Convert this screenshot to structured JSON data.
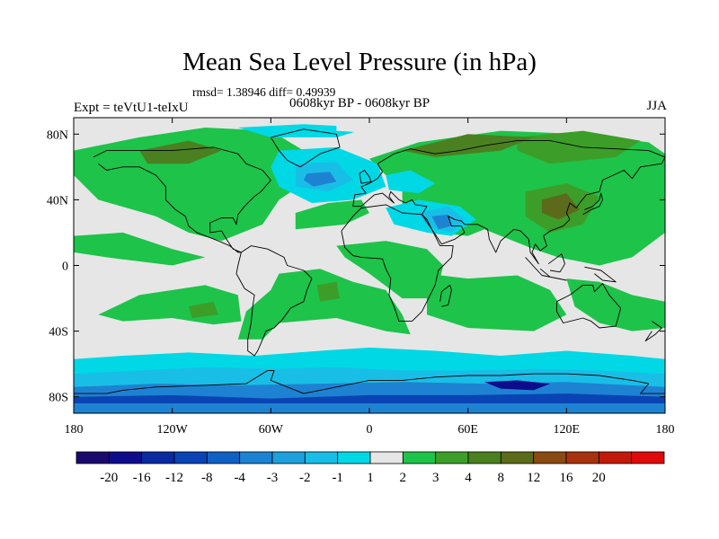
{
  "title": "Mean Sea Level Pressure (in hPa)",
  "stats_line": "rmsd= 1.38946 diff= 0.49939",
  "period_line": "0608kyr BP - 0608kyr BP",
  "experiment_label": "Expt = teVtU1-teIxU",
  "season_label": "JJA",
  "map": {
    "lon_range": [
      -180,
      180
    ],
    "lat_range": [
      -90,
      90
    ],
    "x_ticks": [
      {
        "lon": -180,
        "label": "180"
      },
      {
        "lon": -120,
        "label": "120W"
      },
      {
        "lon": -60,
        "label": "60W"
      },
      {
        "lon": 0,
        "label": "0"
      },
      {
        "lon": 60,
        "label": "60E"
      },
      {
        "lon": 120,
        "label": "120E"
      },
      {
        "lon": 180,
        "label": "180"
      }
    ],
    "y_ticks": [
      {
        "lat": 80,
        "label": "80N"
      },
      {
        "lat": 40,
        "label": "40N"
      },
      {
        "lat": 0,
        "label": "0"
      },
      {
        "lat": -40,
        "label": "40S"
      },
      {
        "lat": -80,
        "label": "80S"
      }
    ],
    "background_color": "#e6e6e6",
    "coastline_color": "#000000"
  },
  "colorbar": {
    "colors": [
      "#1a0a6e",
      "#0d0d8c",
      "#0a2aa0",
      "#0a44b4",
      "#1160c4",
      "#1e82d2",
      "#1ea0dc",
      "#19bee6",
      "#00d8e6",
      "#e6e6e6",
      "#1ec34a",
      "#3c9e28",
      "#4a8020",
      "#5c6a1c",
      "#8a4a14",
      "#a8320f",
      "#c21a0a",
      "#e00a0a"
    ],
    "labels": [
      "-20",
      "-16",
      "-12",
      "-8",
      "-4",
      "-3",
      "-2",
      "-1",
      "1",
      "2",
      "3",
      "4",
      "8",
      "12",
      "16",
      "20"
    ]
  }
}
